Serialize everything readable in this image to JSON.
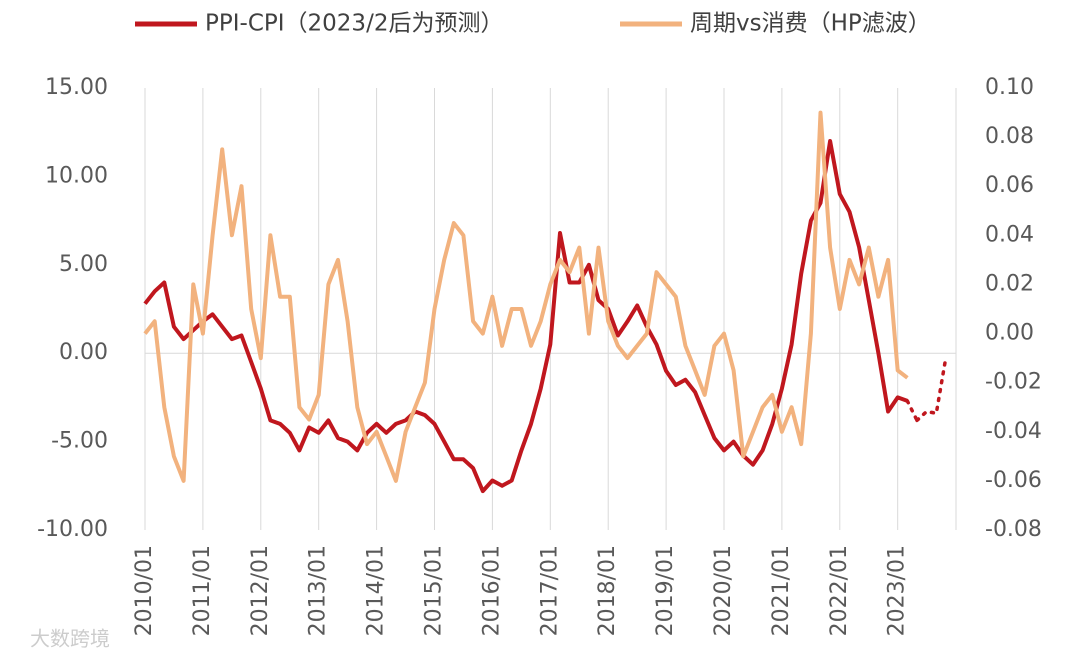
{
  "chart_data": {
    "type": "line",
    "categories": [
      "2010/01",
      null,
      null,
      null,
      null,
      null,
      "2011/01",
      null,
      null,
      null,
      null,
      null,
      "2012/01",
      null,
      null,
      null,
      null,
      null,
      "2013/01",
      null,
      null,
      null,
      null,
      null,
      "2014/01",
      null,
      null,
      null,
      null,
      null,
      "2015/01",
      null,
      null,
      null,
      null,
      null,
      "2016/01",
      null,
      null,
      null,
      null,
      null,
      "2017/01",
      null,
      null,
      null,
      null,
      null,
      "2018/01",
      null,
      null,
      null,
      null,
      null,
      "2019/01",
      null,
      null,
      null,
      null,
      null,
      "2020/01",
      null,
      null,
      null,
      null,
      null,
      "2021/01",
      null,
      null,
      null,
      null,
      null,
      "2022/01",
      null,
      null,
      null,
      null,
      null,
      "2023/01",
      null,
      null,
      null,
      null,
      null
    ],
    "series": [
      {
        "name": "PPI-CPI（2023/2后为预测）",
        "color": "#c0171e",
        "axis": "y",
        "values": [
          2.8,
          3.5,
          4.0,
          1.5,
          0.8,
          1.3,
          1.8,
          2.2,
          1.5,
          0.8,
          1.0,
          -0.5,
          -2.0,
          -3.8,
          -4.0,
          -4.5,
          -5.5,
          -4.2,
          -4.5,
          -3.8,
          -4.8,
          -5.0,
          -5.5,
          -4.5,
          -4.0,
          -4.5,
          -4.0,
          -3.8,
          -3.3,
          -3.5,
          -4.0,
          -5.0,
          -6.0,
          -6.0,
          -6.5,
          -7.8,
          -7.2,
          -7.5,
          -7.2,
          -5.5,
          -4.0,
          -2.0,
          0.5,
          6.8,
          4.0,
          4.0,
          5.0,
          3.0,
          2.5,
          1.0,
          1.8,
          2.7,
          1.5,
          0.5,
          -1.0,
          -1.8,
          -1.5,
          -2.2,
          -3.5,
          -4.8,
          -5.5,
          -5.0,
          -5.8,
          -6.3,
          -5.5,
          -4.0,
          -2.0,
          0.5,
          4.5,
          7.5,
          8.5,
          12.0,
          9.0,
          8.0,
          6.0,
          3.0,
          0.0,
          -3.3,
          -2.5,
          -2.7,
          null,
          null,
          null,
          null
        ],
        "forecast_values": [
          null,
          null,
          null,
          null,
          null,
          null,
          null,
          null,
          null,
          null,
          null,
          null,
          null,
          null,
          null,
          null,
          null,
          null,
          null,
          null,
          null,
          null,
          null,
          null,
          null,
          null,
          null,
          null,
          null,
          null,
          null,
          null,
          null,
          null,
          null,
          null,
          null,
          null,
          null,
          null,
          null,
          null,
          null,
          null,
          null,
          null,
          null,
          null,
          null,
          null,
          null,
          null,
          null,
          null,
          null,
          null,
          null,
          null,
          null,
          null,
          null,
          null,
          null,
          null,
          null,
          null,
          null,
          null,
          null,
          null,
          null,
          null,
          null,
          null,
          null,
          null,
          null,
          null,
          null,
          null,
          -3.8,
          -3.3,
          -3.4,
          -0.2
        ]
      },
      {
        "name": "周期vs消费（HP滤波）",
        "color": "#f2b27e",
        "axis": "y2",
        "values": [
          0.0,
          0.005,
          -0.03,
          -0.05,
          -0.06,
          0.02,
          0.0,
          0.04,
          0.075,
          0.04,
          0.06,
          0.01,
          -0.01,
          0.04,
          0.015,
          0.015,
          -0.03,
          -0.035,
          -0.025,
          0.02,
          0.03,
          0.005,
          -0.03,
          -0.045,
          -0.04,
          -0.05,
          -0.06,
          -0.04,
          -0.03,
          -0.02,
          0.01,
          0.03,
          0.045,
          0.04,
          0.005,
          0.0,
          0.015,
          -0.005,
          0.01,
          0.01,
          -0.005,
          0.005,
          0.02,
          0.03,
          0.025,
          0.035,
          0.0,
          0.035,
          0.005,
          -0.005,
          -0.01,
          -0.005,
          0.0,
          0.025,
          0.02,
          0.015,
          -0.005,
          -0.015,
          -0.025,
          -0.005,
          0.0,
          -0.015,
          -0.05,
          -0.04,
          -0.03,
          -0.025,
          -0.04,
          -0.03,
          -0.045,
          0.0,
          0.09,
          0.035,
          0.01,
          0.03,
          0.02,
          0.035,
          0.015,
          0.03,
          -0.015,
          -0.018,
          null,
          null,
          null,
          null
        ]
      }
    ],
    "ylim": [
      -10,
      15
    ],
    "yticks": [
      {
        "value": -10,
        "label": "-10.00"
      },
      {
        "value": -5,
        "label": "-5.00"
      },
      {
        "value": 0,
        "label": "0.00"
      },
      {
        "value": 5,
        "label": "5.00"
      },
      {
        "value": 10,
        "label": "10.00"
      },
      {
        "value": 15,
        "label": "15.00"
      }
    ],
    "y2lim": [
      -0.08,
      0.1
    ],
    "y2ticks": [
      {
        "value": -0.08,
        "label": "-0.08"
      },
      {
        "value": -0.06,
        "label": "-0.06"
      },
      {
        "value": -0.04,
        "label": "-0.04"
      },
      {
        "value": -0.02,
        "label": "-0.02"
      },
      {
        "value": 0.0,
        "label": "0.00"
      },
      {
        "value": 0.02,
        "label": "0.02"
      },
      {
        "value": 0.04,
        "label": "0.04"
      },
      {
        "value": 0.06,
        "label": "0.06"
      },
      {
        "value": 0.08,
        "label": "0.08"
      },
      {
        "value": 0.1,
        "label": "0.10"
      }
    ],
    "watermark": "大数跨境"
  }
}
